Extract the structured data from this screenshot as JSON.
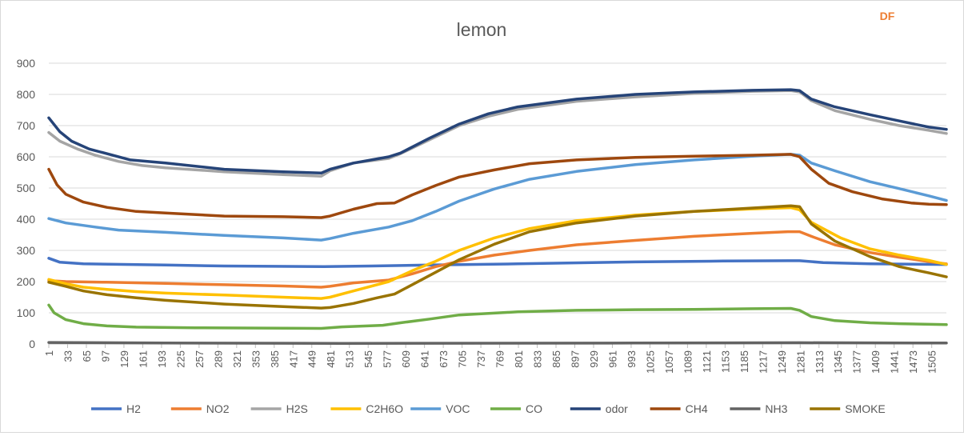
{
  "chart_data": {
    "type": "line",
    "title": "lemon",
    "badge": "DF",
    "badge_color": "#ed7d31",
    "xlabel": "",
    "ylabel": "",
    "ylim": [
      0,
      900
    ],
    "yticks": [
      0,
      100,
      200,
      300,
      400,
      500,
      600,
      700,
      800,
      900
    ],
    "xlim": [
      1,
      1530
    ],
    "xticks": [
      1,
      33,
      65,
      97,
      129,
      161,
      193,
      225,
      257,
      289,
      321,
      353,
      385,
      417,
      449,
      481,
      513,
      545,
      577,
      609,
      641,
      673,
      705,
      737,
      769,
      801,
      833,
      865,
      897,
      929,
      961,
      993,
      1025,
      1057,
      1089,
      1121,
      1153,
      1185,
      1217,
      1249,
      1281,
      1313,
      1345,
      1377,
      1409,
      1441,
      1473,
      1505
    ],
    "grid": true,
    "legend_position": "bottom",
    "series": [
      {
        "name": "H2",
        "color": "#4472c4",
        "points": [
          [
            1,
            275
          ],
          [
            20,
            262
          ],
          [
            60,
            257
          ],
          [
            200,
            253
          ],
          [
            300,
            250
          ],
          [
            470,
            248
          ],
          [
            550,
            250
          ],
          [
            650,
            253
          ],
          [
            800,
            257
          ],
          [
            1000,
            263
          ],
          [
            1150,
            266
          ],
          [
            1260,
            267
          ],
          [
            1280,
            267
          ],
          [
            1320,
            261
          ],
          [
            1400,
            257
          ],
          [
            1530,
            255
          ]
        ]
      },
      {
        "name": "NO2",
        "color": "#ed7d31",
        "points": [
          [
            1,
            203
          ],
          [
            30,
            200
          ],
          [
            100,
            198
          ],
          [
            200,
            194
          ],
          [
            300,
            190
          ],
          [
            400,
            186
          ],
          [
            465,
            182
          ],
          [
            480,
            185
          ],
          [
            520,
            196
          ],
          [
            580,
            205
          ],
          [
            620,
            225
          ],
          [
            660,
            248
          ],
          [
            700,
            265
          ],
          [
            760,
            285
          ],
          [
            820,
            300
          ],
          [
            900,
            318
          ],
          [
            1000,
            332
          ],
          [
            1100,
            345
          ],
          [
            1200,
            355
          ],
          [
            1260,
            360
          ],
          [
            1280,
            360
          ],
          [
            1300,
            345
          ],
          [
            1340,
            318
          ],
          [
            1400,
            293
          ],
          [
            1450,
            278
          ],
          [
            1500,
            264
          ],
          [
            1530,
            257
          ]
        ]
      },
      {
        "name": "H2S",
        "color": "#a5a5a5",
        "points": [
          [
            1,
            678
          ],
          [
            20,
            650
          ],
          [
            50,
            625
          ],
          [
            80,
            605
          ],
          [
            120,
            585
          ],
          [
            160,
            572
          ],
          [
            200,
            565
          ],
          [
            300,
            552
          ],
          [
            400,
            543
          ],
          [
            465,
            538
          ],
          [
            480,
            555
          ],
          [
            520,
            580
          ],
          [
            580,
            595
          ],
          [
            600,
            610
          ],
          [
            650,
            655
          ],
          [
            700,
            700
          ],
          [
            750,
            730
          ],
          [
            800,
            752
          ],
          [
            900,
            778
          ],
          [
            1000,
            792
          ],
          [
            1100,
            803
          ],
          [
            1200,
            810
          ],
          [
            1265,
            812
          ],
          [
            1280,
            808
          ],
          [
            1300,
            780
          ],
          [
            1340,
            748
          ],
          [
            1400,
            720
          ],
          [
            1450,
            700
          ],
          [
            1500,
            685
          ],
          [
            1530,
            675
          ]
        ]
      },
      {
        "name": "C2H6O",
        "color": "#ffc000",
        "points": [
          [
            1,
            207
          ],
          [
            30,
            193
          ],
          [
            60,
            182
          ],
          [
            100,
            175
          ],
          [
            150,
            168
          ],
          [
            200,
            163
          ],
          [
            300,
            157
          ],
          [
            400,
            150
          ],
          [
            465,
            146
          ],
          [
            480,
            150
          ],
          [
            520,
            170
          ],
          [
            580,
            200
          ],
          [
            620,
            235
          ],
          [
            660,
            265
          ],
          [
            700,
            300
          ],
          [
            760,
            340
          ],
          [
            820,
            370
          ],
          [
            900,
            395
          ],
          [
            1000,
            413
          ],
          [
            1100,
            425
          ],
          [
            1200,
            433
          ],
          [
            1265,
            437
          ],
          [
            1280,
            430
          ],
          [
            1300,
            390
          ],
          [
            1350,
            340
          ],
          [
            1400,
            305
          ],
          [
            1450,
            285
          ],
          [
            1500,
            268
          ],
          [
            1530,
            255
          ]
        ]
      },
      {
        "name": "VOC",
        "color": "#5b9bd5",
        "points": [
          [
            1,
            402
          ],
          [
            30,
            388
          ],
          [
            80,
            375
          ],
          [
            120,
            365
          ],
          [
            200,
            358
          ],
          [
            300,
            348
          ],
          [
            400,
            340
          ],
          [
            465,
            333
          ],
          [
            480,
            338
          ],
          [
            520,
            355
          ],
          [
            580,
            375
          ],
          [
            620,
            395
          ],
          [
            660,
            425
          ],
          [
            700,
            458
          ],
          [
            760,
            497
          ],
          [
            820,
            528
          ],
          [
            900,
            553
          ],
          [
            1000,
            575
          ],
          [
            1100,
            590
          ],
          [
            1200,
            602
          ],
          [
            1265,
            608
          ],
          [
            1280,
            605
          ],
          [
            1300,
            580
          ],
          [
            1340,
            555
          ],
          [
            1400,
            520
          ],
          [
            1450,
            498
          ],
          [
            1500,
            475
          ],
          [
            1530,
            460
          ]
        ]
      },
      {
        "name": "CO",
        "color": "#70ad47",
        "points": [
          [
            1,
            125
          ],
          [
            10,
            100
          ],
          [
            30,
            78
          ],
          [
            60,
            65
          ],
          [
            100,
            58
          ],
          [
            150,
            54
          ],
          [
            250,
            52
          ],
          [
            465,
            50
          ],
          [
            500,
            55
          ],
          [
            570,
            60
          ],
          [
            600,
            68
          ],
          [
            650,
            80
          ],
          [
            700,
            93
          ],
          [
            800,
            103
          ],
          [
            900,
            108
          ],
          [
            1000,
            110
          ],
          [
            1100,
            111
          ],
          [
            1200,
            113
          ],
          [
            1265,
            114
          ],
          [
            1280,
            108
          ],
          [
            1300,
            88
          ],
          [
            1340,
            75
          ],
          [
            1400,
            68
          ],
          [
            1450,
            65
          ],
          [
            1530,
            62
          ]
        ]
      },
      {
        "name": "odor",
        "color": "#264478",
        "points": [
          [
            1,
            725
          ],
          [
            20,
            680
          ],
          [
            40,
            650
          ],
          [
            70,
            625
          ],
          [
            100,
            610
          ],
          [
            140,
            590
          ],
          [
            200,
            580
          ],
          [
            300,
            560
          ],
          [
            400,
            552
          ],
          [
            465,
            548
          ],
          [
            480,
            560
          ],
          [
            520,
            580
          ],
          [
            580,
            600
          ],
          [
            600,
            612
          ],
          [
            650,
            660
          ],
          [
            700,
            705
          ],
          [
            750,
            738
          ],
          [
            800,
            760
          ],
          [
            900,
            785
          ],
          [
            1000,
            800
          ],
          [
            1100,
            808
          ],
          [
            1200,
            813
          ],
          [
            1265,
            815
          ],
          [
            1280,
            812
          ],
          [
            1300,
            785
          ],
          [
            1340,
            760
          ],
          [
            1400,
            735
          ],
          [
            1450,
            715
          ],
          [
            1500,
            695
          ],
          [
            1530,
            688
          ]
        ]
      },
      {
        "name": "CH4",
        "color": "#9e480e",
        "points": [
          [
            1,
            560
          ],
          [
            15,
            510
          ],
          [
            30,
            480
          ],
          [
            60,
            455
          ],
          [
            100,
            438
          ],
          [
            150,
            425
          ],
          [
            200,
            420
          ],
          [
            300,
            410
          ],
          [
            400,
            408
          ],
          [
            465,
            405
          ],
          [
            480,
            410
          ],
          [
            520,
            432
          ],
          [
            560,
            450
          ],
          [
            590,
            452
          ],
          [
            620,
            478
          ],
          [
            660,
            508
          ],
          [
            700,
            535
          ],
          [
            760,
            558
          ],
          [
            820,
            578
          ],
          [
            900,
            590
          ],
          [
            1000,
            598
          ],
          [
            1100,
            602
          ],
          [
            1200,
            605
          ],
          [
            1265,
            608
          ],
          [
            1280,
            600
          ],
          [
            1300,
            560
          ],
          [
            1330,
            515
          ],
          [
            1370,
            488
          ],
          [
            1420,
            465
          ],
          [
            1470,
            452
          ],
          [
            1500,
            448
          ],
          [
            1530,
            447
          ]
        ]
      },
      {
        "name": "NH3",
        "color": "#636363",
        "points": [
          [
            1,
            5
          ],
          [
            200,
            3
          ],
          [
            500,
            2
          ],
          [
            1000,
            3
          ],
          [
            1280,
            4
          ],
          [
            1530,
            3
          ]
        ]
      },
      {
        "name": "SMOKE",
        "color": "#997300",
        "points": [
          [
            1,
            198
          ],
          [
            30,
            185
          ],
          [
            60,
            170
          ],
          [
            100,
            158
          ],
          [
            150,
            148
          ],
          [
            200,
            140
          ],
          [
            300,
            128
          ],
          [
            400,
            120
          ],
          [
            465,
            115
          ],
          [
            480,
            117
          ],
          [
            520,
            130
          ],
          [
            560,
            148
          ],
          [
            590,
            160
          ],
          [
            620,
            190
          ],
          [
            660,
            230
          ],
          [
            700,
            270
          ],
          [
            760,
            320
          ],
          [
            820,
            360
          ],
          [
            900,
            388
          ],
          [
            1000,
            410
          ],
          [
            1100,
            425
          ],
          [
            1200,
            436
          ],
          [
            1265,
            443
          ],
          [
            1280,
            440
          ],
          [
            1300,
            385
          ],
          [
            1340,
            330
          ],
          [
            1400,
            280
          ],
          [
            1450,
            248
          ],
          [
            1500,
            228
          ],
          [
            1530,
            215
          ]
        ]
      }
    ]
  }
}
